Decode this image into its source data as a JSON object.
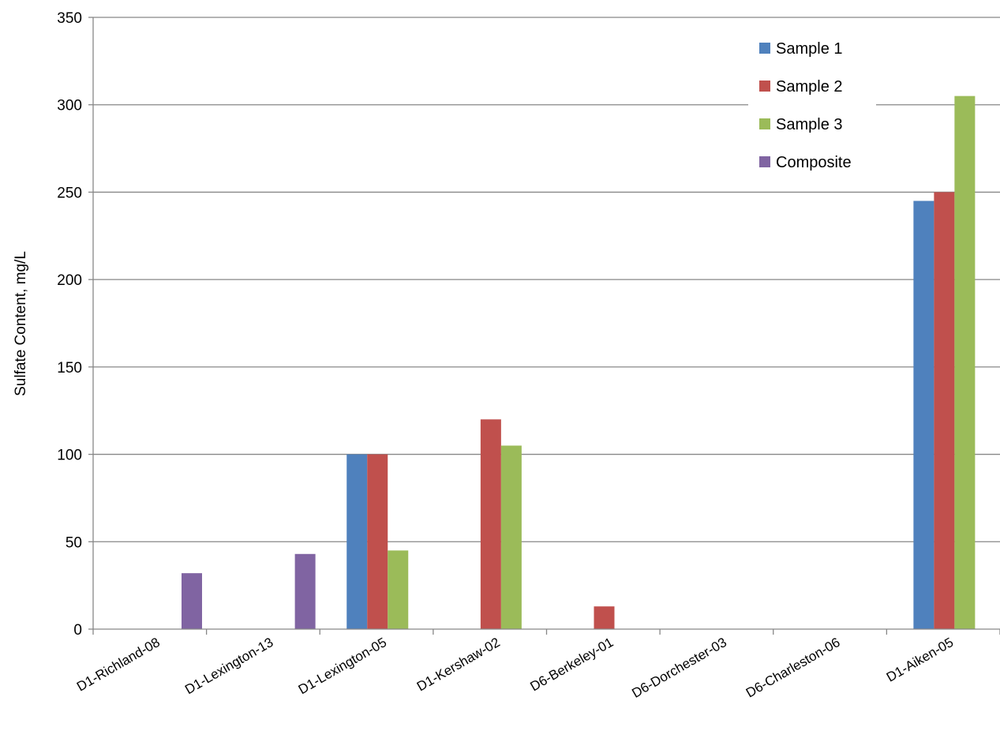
{
  "chart_data": {
    "type": "bar",
    "title": "",
    "xlabel": "",
    "ylabel": "Sulfate Content, mg/L",
    "ylim": [
      0,
      350
    ],
    "yticks": [
      0,
      50,
      100,
      150,
      200,
      250,
      300,
      350
    ],
    "grid": true,
    "legend_position": "top-right",
    "categories": [
      "D1-Richland-08",
      "D1-Lexington-13",
      "D1-Lexington-05",
      "D1-Kershaw-02",
      "D6-Berkeley-01",
      "D6-Dorchester-03",
      "D6-Charleston-06",
      "D1-Aiken-05"
    ],
    "series": [
      {
        "name": "Sample 1",
        "color": "#4F81BD",
        "values": [
          null,
          null,
          100,
          null,
          null,
          null,
          null,
          245
        ]
      },
      {
        "name": "Sample 2",
        "color": "#C0504D",
        "values": [
          null,
          null,
          100,
          120,
          13,
          null,
          null,
          250
        ]
      },
      {
        "name": "Sample 3",
        "color": "#9BBB59",
        "values": [
          null,
          null,
          45,
          105,
          null,
          null,
          null,
          305
        ]
      },
      {
        "name": "Composite",
        "color": "#8064A2",
        "values": [
          32,
          43,
          null,
          null,
          null,
          null,
          null,
          null
        ]
      }
    ]
  }
}
